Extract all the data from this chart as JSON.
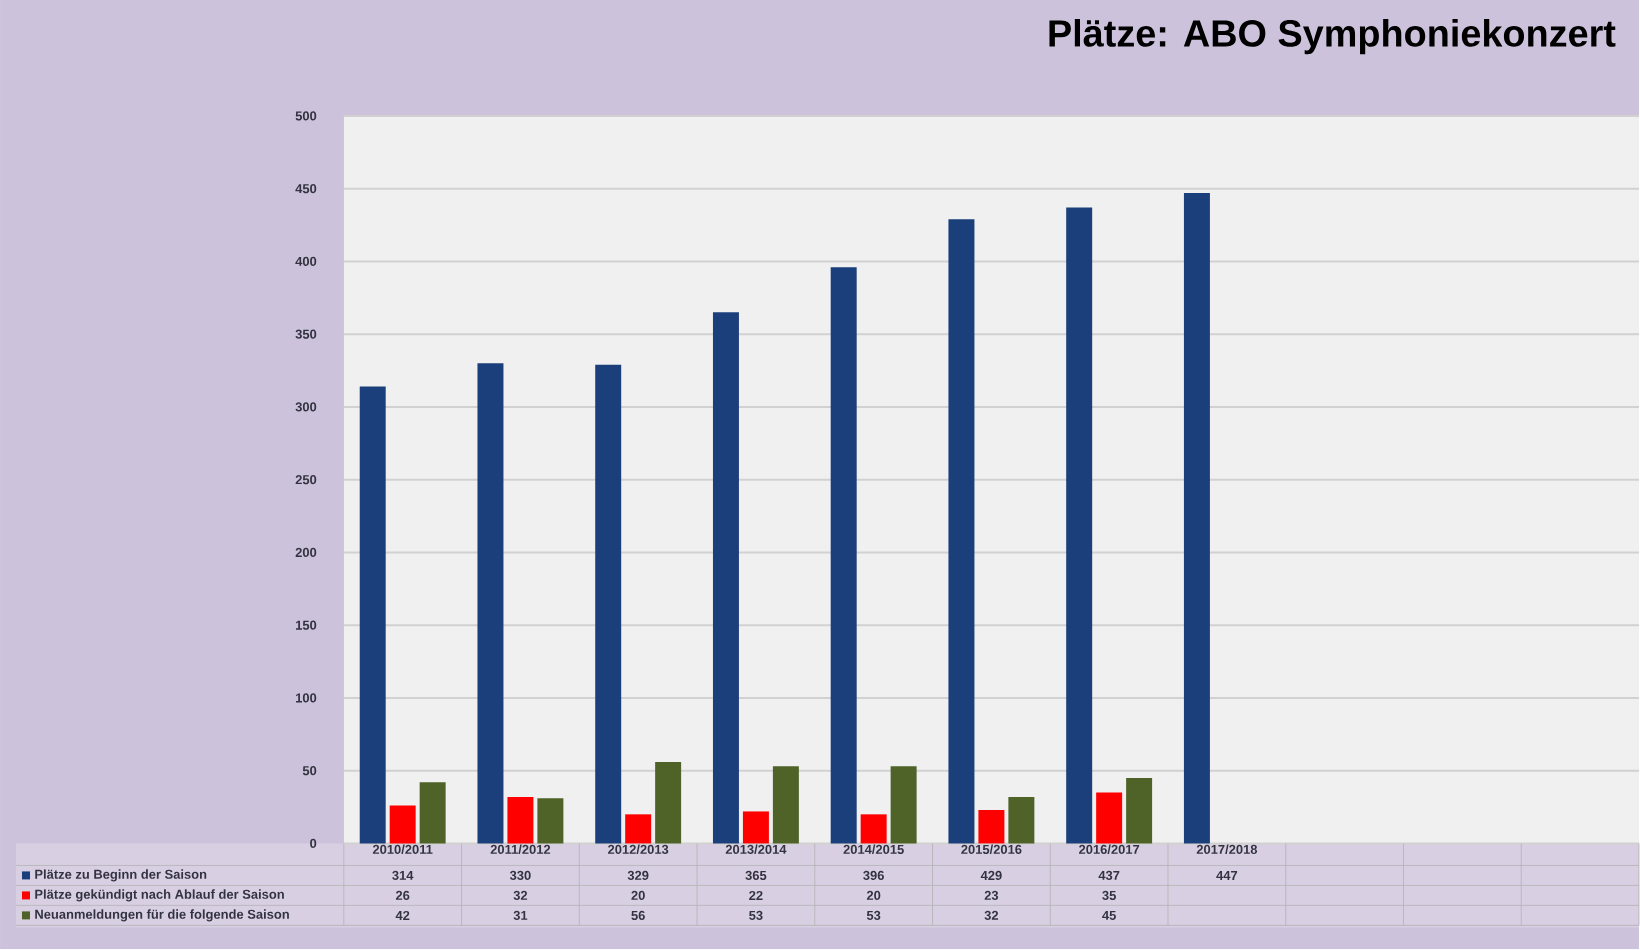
{
  "chart_data": {
    "type": "bar",
    "title": "Plätze: ABO Symphoniekonzert",
    "categories": [
      "2010/2011",
      "2011/2012",
      "2012/2013",
      "2013/2014",
      "2014/2015",
      "2015/2016",
      "2016/2017",
      "2017/2018",
      null,
      null,
      null
    ],
    "series": [
      {
        "name": "Plätze zu Beginn der Saison",
        "color": "#1b3f7a",
        "values": [
          314,
          330,
          329,
          365,
          396,
          429,
          437,
          447,
          null,
          null,
          null
        ]
      },
      {
        "name": "Plätze gekündigt nach Ablauf der Saison",
        "color": "#ff0000",
        "values": [
          26,
          32,
          20,
          22,
          20,
          23,
          35,
          null,
          null,
          null,
          null
        ]
      },
      {
        "name": "Neuanmeldungen für die folgende Saison",
        "color": "#4f6228",
        "values": [
          42,
          31,
          56,
          53,
          53,
          32,
          45,
          null,
          null,
          null,
          null
        ]
      }
    ],
    "ylim": [
      0,
      500
    ],
    "yticks": [
      0,
      50,
      100,
      150,
      200,
      250,
      300,
      350,
      400,
      450,
      500
    ],
    "grid": "y",
    "legend": "bottom left",
    "data_labels": true
  }
}
